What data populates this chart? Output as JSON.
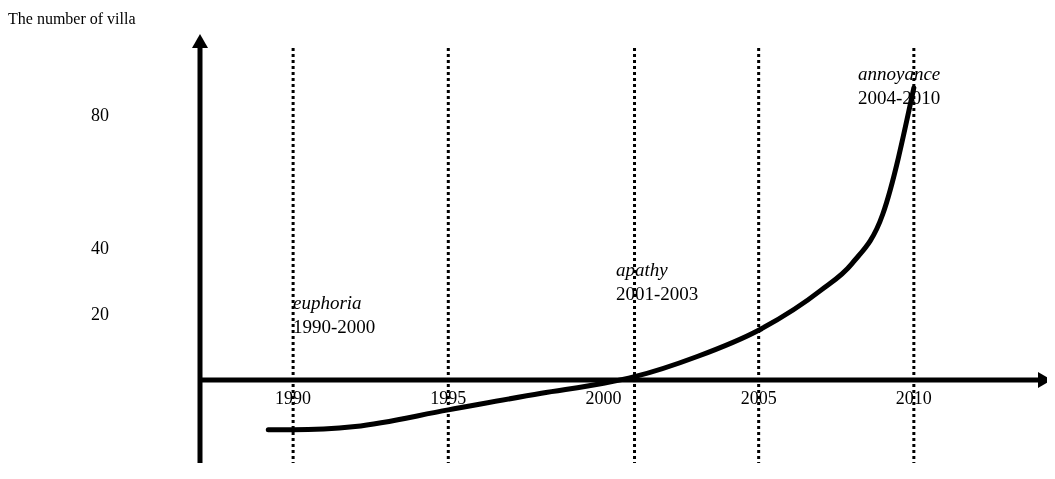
{
  "chart_data": {
    "type": "line",
    "ylabel": "The number of villa",
    "x": [
      1989.2,
      1990,
      1992,
      1995,
      1998,
      2000,
      2001,
      2003,
      2005,
      2007,
      2008,
      2009,
      2010
    ],
    "series": [
      {
        "color": "#000000",
        "values": [
          -15,
          -15,
          -14,
          -9,
          -4,
          -1,
          1,
          7,
          15,
          27,
          35,
          50,
          88
        ]
      }
    ],
    "xlim": [
      1987,
      2014
    ],
    "xticks": [
      1990,
      1995,
      2000,
      2005,
      2010
    ],
    "ylim": [
      -25,
      100
    ],
    "yticks": [
      20,
      40,
      80
    ],
    "marker": "none",
    "line_style": "solid",
    "grid": false,
    "ref_lines": [
      {
        "axis": "x",
        "value": 1990,
        "line_style": "dotted",
        "color": "#000000"
      },
      {
        "axis": "x",
        "value": 1995,
        "line_style": "dotted",
        "color": "#000000"
      },
      {
        "axis": "x",
        "value": 2001,
        "line_style": "dotted",
        "color": "#000000"
      },
      {
        "axis": "x",
        "value": 2005,
        "line_style": "dotted",
        "color": "#000000"
      },
      {
        "axis": "x",
        "value": 2010,
        "line_style": "dotted",
        "color": "#000000"
      }
    ],
    "annotations": [
      "euphoria\n1990-2000",
      "apathy\n2001-2003",
      "annoyance\n2004-2010"
    ]
  }
}
